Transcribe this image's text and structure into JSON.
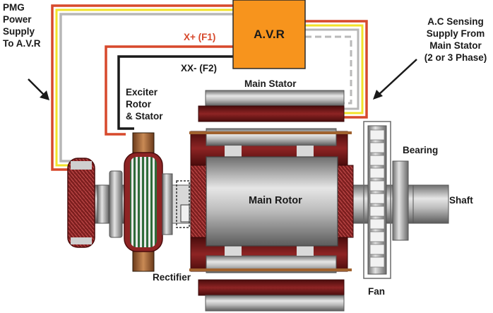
{
  "labels": {
    "avr": "A.V.R",
    "pmg": [
      "PMG",
      "Power",
      "Supply",
      "To A.V.R"
    ],
    "ac_sensing": [
      "A.C Sensing",
      "Supply From",
      "Main Stator",
      "(2 or 3 Phase)"
    ],
    "x_plus": "X+ (F1)",
    "xx_minus": "XX- (F2)",
    "exciter": [
      "Exciter",
      "Rotor",
      "& Stator"
    ],
    "main_stator": "Main Stator",
    "main_rotor": "Main Rotor",
    "bearing": "Bearing",
    "shaft": "Shaft",
    "rectifier": "Rectifier",
    "fan": "Fan"
  },
  "colors": {
    "avr_fill": "#f7941d",
    "wire_red": "#d7492c",
    "wire_yellow": "#f2e22a",
    "wire_gray": "#b7b7b7",
    "wire_black": "#1a1a1a",
    "stator_red": "#7a1a1a",
    "metal": "#a8a8a8"
  }
}
